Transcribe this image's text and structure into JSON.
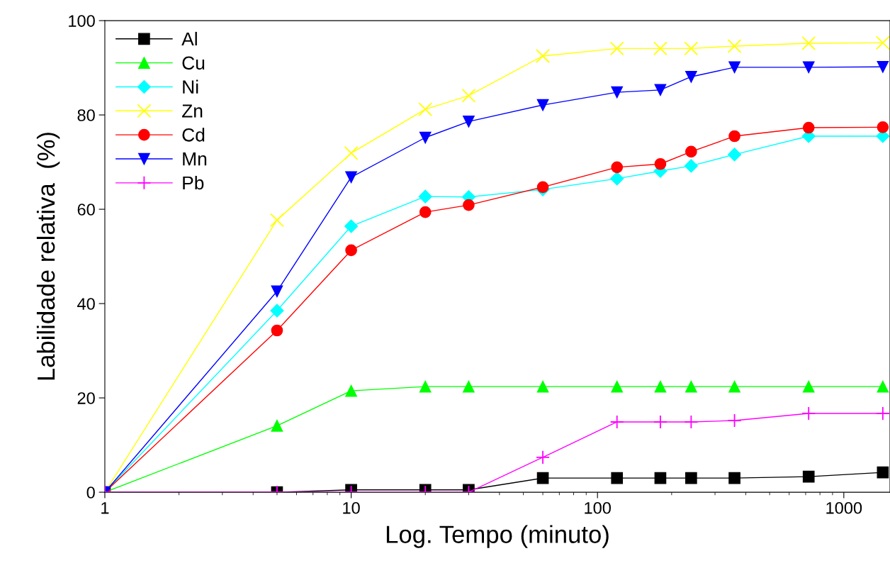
{
  "chart_data": {
    "type": "line",
    "xlabel": "Log. Tempo (minuto)",
    "ylabel": "Labilidade relativa  (%)",
    "x": [
      1,
      5,
      10,
      20,
      30,
      60,
      120,
      180,
      240,
      360,
      720,
      1440
    ],
    "log": "x",
    "xlim": [
      1,
      1540
    ],
    "xticks": [
      1,
      10,
      100,
      1000
    ],
    "ylim": [
      0,
      100
    ],
    "yticks": [
      0,
      20,
      40,
      60,
      80,
      100
    ],
    "grid": false,
    "legend": "top left",
    "series": [
      {
        "name": "Al",
        "color": "#000000",
        "marker": "square",
        "values": [
          0,
          0,
          0.5,
          0.5,
          0.5,
          3.0,
          3.0,
          3.0,
          3.0,
          3.0,
          3.3,
          4.2
        ]
      },
      {
        "name": "Cu",
        "color": "#00ff00",
        "marker": "triangle",
        "values": [
          0,
          14.1,
          21.5,
          22.4,
          22.4,
          22.4,
          22.4,
          22.4,
          22.4,
          22.4,
          22.4,
          22.4
        ]
      },
      {
        "name": "Ni",
        "color": "#00ffff",
        "marker": "diamond",
        "values": [
          0,
          38.5,
          56.4,
          62.7,
          62.6,
          64.2,
          66.5,
          68.1,
          69.2,
          71.6,
          75.5,
          75.5
        ]
      },
      {
        "name": "Zn",
        "color": "#ffff00",
        "marker": "cross",
        "values": [
          0,
          57.7,
          71.9,
          81.2,
          84.1,
          92.5,
          94.1,
          94.1,
          94.1,
          94.6,
          95.2,
          95.3
        ]
      },
      {
        "name": "Cd",
        "color": "#ff0000",
        "marker": "circle",
        "values": [
          0,
          34.3,
          51.3,
          59.4,
          60.9,
          64.7,
          68.9,
          69.6,
          72.2,
          75.5,
          77.3,
          77.4
        ]
      },
      {
        "name": "Mn",
        "color": "#0000ff",
        "marker": "triangle_down",
        "values": [
          0,
          42.6,
          66.8,
          75.2,
          78.6,
          82.1,
          84.8,
          85.3,
          88.1,
          90.1,
          90.1,
          90.2
        ]
      },
      {
        "name": "Pb",
        "color": "#ff00ff",
        "marker": "plus",
        "values": [
          0,
          0,
          0,
          0,
          0,
          7.4,
          14.9,
          14.9,
          14.9,
          15.2,
          16.7,
          16.7
        ]
      }
    ]
  }
}
